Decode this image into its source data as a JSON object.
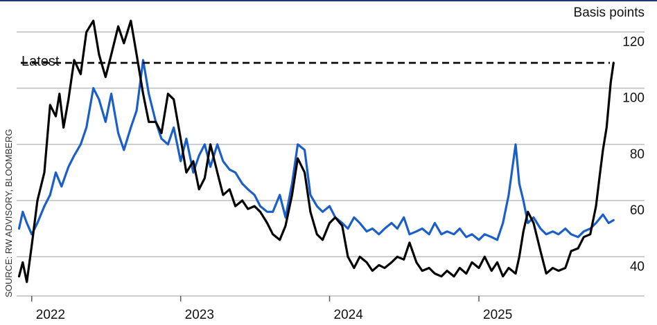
{
  "chart_data": {
    "type": "line",
    "ylabel": "Basis points",
    "ylim": [
      28,
      124
    ],
    "y_ticks": [
      40,
      60,
      80,
      100,
      120
    ],
    "y_tick_labels": [
      "40",
      "60",
      "80",
      "100",
      "120"
    ],
    "x_range": [
      "2021-11-25",
      "2025-12-05"
    ],
    "x_ticks": [
      "2022-01-01",
      "2023-01-01",
      "2024-01-01",
      "2025-01-01"
    ],
    "x_tick_labels": [
      "2022",
      "2023",
      "2024",
      "2025"
    ],
    "grid": true,
    "reference_line": {
      "label": "Latest",
      "value": 109
    },
    "source": "SOURCE: RW ADVISORY, BLOOMBERG",
    "series": [
      {
        "color": "#000000",
        "x": [
          "2021-12-01",
          "2021-12-10",
          "2021-12-20",
          "2022-01-01",
          "2022-01-15",
          "2022-02-01",
          "2022-02-15",
          "2022-03-01",
          "2022-03-10",
          "2022-03-20",
          "2022-04-01",
          "2022-04-15",
          "2022-05-01",
          "2022-05-15",
          "2022-06-01",
          "2022-06-15",
          "2022-07-01",
          "2022-07-15",
          "2022-08-01",
          "2022-08-15",
          "2022-09-01",
          "2022-09-15",
          "2022-10-01",
          "2022-10-15",
          "2022-11-01",
          "2022-11-15",
          "2022-12-01",
          "2022-12-15",
          "2023-01-01",
          "2023-01-15",
          "2023-02-01",
          "2023-02-15",
          "2023-03-01",
          "2023-03-15",
          "2023-04-01",
          "2023-04-15",
          "2023-05-01",
          "2023-05-15",
          "2023-06-01",
          "2023-06-15",
          "2023-07-01",
          "2023-07-15",
          "2023-08-01",
          "2023-08-15",
          "2023-09-01",
          "2023-09-15",
          "2023-10-01",
          "2023-10-15",
          "2023-11-01",
          "2023-11-15",
          "2023-12-01",
          "2023-12-15",
          "2024-01-01",
          "2024-01-15",
          "2024-02-01",
          "2024-02-15",
          "2024-03-01",
          "2024-03-15",
          "2024-04-01",
          "2024-04-15",
          "2024-05-01",
          "2024-05-15",
          "2024-06-01",
          "2024-06-15",
          "2024-07-01",
          "2024-07-15",
          "2024-08-01",
          "2024-08-15",
          "2024-09-01",
          "2024-09-15",
          "2024-10-01",
          "2024-10-15",
          "2024-11-01",
          "2024-11-15",
          "2024-12-01",
          "2024-12-15",
          "2025-01-01",
          "2025-01-15",
          "2025-02-01",
          "2025-02-15",
          "2025-03-01",
          "2025-03-15",
          "2025-04-01",
          "2025-04-10",
          "2025-04-20",
          "2025-05-01",
          "2025-05-15",
          "2025-06-01",
          "2025-06-15",
          "2025-07-01",
          "2025-07-15",
          "2025-08-01",
          "2025-08-15",
          "2025-09-01",
          "2025-09-15",
          "2025-10-01",
          "2025-10-15",
          "2025-10-25",
          "2025-11-01",
          "2025-11-10",
          "2025-11-20",
          "2025-11-27"
        ],
        "values": [
          33,
          38,
          31,
          44,
          60,
          70,
          94,
          90,
          98,
          86,
          96,
          110,
          105,
          120,
          124,
          112,
          104,
          112,
          122,
          116,
          124,
          112,
          98,
          88,
          88,
          84,
          98,
          96,
          82,
          70,
          74,
          64,
          68,
          80,
          70,
          62,
          64,
          58,
          60,
          57,
          58,
          56,
          52,
          48,
          46,
          51,
          62,
          75,
          70,
          56,
          48,
          46,
          52,
          54,
          51,
          40,
          36,
          40,
          38,
          35,
          37,
          36,
          38,
          40,
          39,
          45,
          38,
          35,
          36,
          34,
          33,
          35,
          33,
          36,
          34,
          38,
          36,
          40,
          35,
          38,
          33,
          36,
          34,
          40,
          49,
          56,
          52,
          42,
          34,
          36,
          35,
          36,
          42,
          43,
          47,
          48,
          58,
          70,
          78,
          86,
          102,
          109
        ]
      },
      {
        "color": "#1a5fc9",
        "x": [
          "2021-12-01",
          "2021-12-10",
          "2021-12-20",
          "2022-01-01",
          "2022-01-15",
          "2022-02-01",
          "2022-02-15",
          "2022-03-01",
          "2022-03-15",
          "2022-04-01",
          "2022-04-15",
          "2022-05-01",
          "2022-05-15",
          "2022-06-01",
          "2022-06-15",
          "2022-07-01",
          "2022-07-15",
          "2022-08-01",
          "2022-08-15",
          "2022-09-01",
          "2022-09-15",
          "2022-10-01",
          "2022-10-15",
          "2022-11-01",
          "2022-11-15",
          "2022-12-01",
          "2022-12-15",
          "2023-01-01",
          "2023-01-15",
          "2023-02-01",
          "2023-02-15",
          "2023-03-01",
          "2023-03-15",
          "2023-04-01",
          "2023-04-15",
          "2023-05-01",
          "2023-05-15",
          "2023-06-01",
          "2023-06-15",
          "2023-07-01",
          "2023-07-15",
          "2023-08-01",
          "2023-08-15",
          "2023-09-01",
          "2023-09-15",
          "2023-10-01",
          "2023-10-15",
          "2023-11-01",
          "2023-11-15",
          "2023-12-01",
          "2023-12-15",
          "2024-01-01",
          "2024-01-15",
          "2024-02-01",
          "2024-02-15",
          "2024-03-01",
          "2024-03-15",
          "2024-04-01",
          "2024-04-15",
          "2024-05-01",
          "2024-05-15",
          "2024-06-01",
          "2024-06-15",
          "2024-07-01",
          "2024-07-15",
          "2024-08-01",
          "2024-08-15",
          "2024-09-01",
          "2024-09-15",
          "2024-10-01",
          "2024-10-15",
          "2024-11-01",
          "2024-11-15",
          "2024-12-01",
          "2024-12-15",
          "2025-01-01",
          "2025-01-15",
          "2025-02-01",
          "2025-02-15",
          "2025-03-01",
          "2025-03-15",
          "2025-04-01",
          "2025-04-10",
          "2025-04-20",
          "2025-05-01",
          "2025-05-15",
          "2025-06-01",
          "2025-06-15",
          "2025-07-01",
          "2025-07-15",
          "2025-08-01",
          "2025-08-15",
          "2025-09-01",
          "2025-09-15",
          "2025-10-01",
          "2025-10-15",
          "2025-11-01",
          "2025-11-15",
          "2025-11-27"
        ],
        "values": [
          50,
          56,
          52,
          48,
          52,
          58,
          62,
          70,
          65,
          72,
          76,
          80,
          86,
          100,
          96,
          88,
          98,
          84,
          78,
          86,
          92,
          110,
          98,
          88,
          82,
          80,
          86,
          74,
          82,
          70,
          76,
          80,
          72,
          80,
          74,
          71,
          70,
          66,
          64,
          62,
          58,
          56,
          56,
          62,
          54,
          66,
          80,
          78,
          62,
          58,
          56,
          58,
          54,
          52,
          50,
          54,
          52,
          49,
          50,
          48,
          50,
          52,
          50,
          54,
          48,
          49,
          50,
          48,
          52,
          48,
          49,
          48,
          50,
          47,
          48,
          46,
          48,
          47,
          46,
          52,
          62,
          80,
          66,
          60,
          52,
          54,
          50,
          48,
          49,
          48,
          50,
          48,
          47,
          49,
          50,
          52,
          55,
          52,
          53
        ]
      }
    ]
  }
}
